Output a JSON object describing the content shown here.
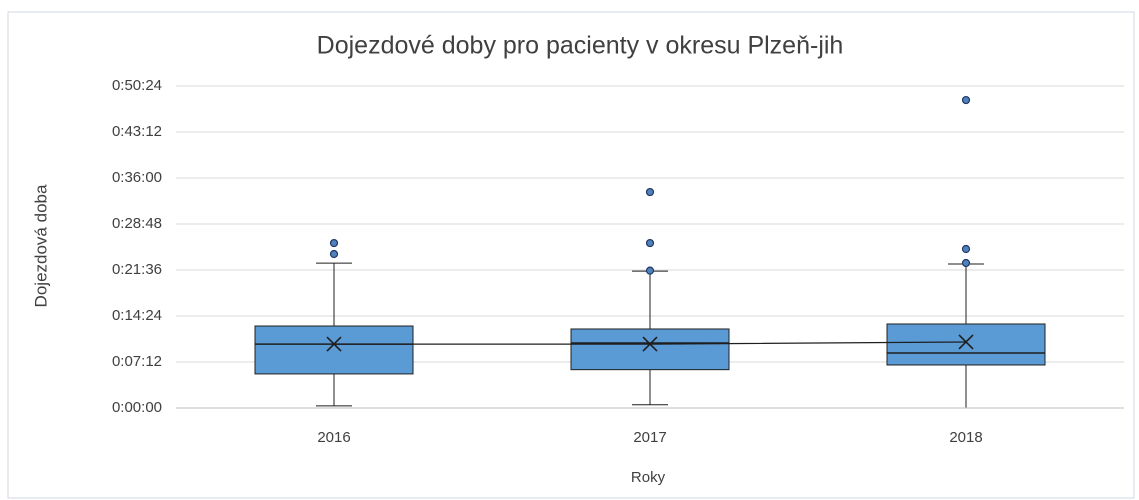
{
  "chart_data": {
    "type": "box",
    "title": "Dojezdové doby pro pacienty v okresu Plzeň-jih",
    "x_label": "Roky",
    "y_label": "Dojezdová doba",
    "categories": [
      "2016",
      "2017",
      "2018"
    ],
    "boxes": [
      {
        "min": 20,
        "q1": 320,
        "median": 600,
        "q3": 770,
        "max": 1360,
        "mean": 600,
        "outliers": [
          1446,
          1549
        ]
      },
      {
        "min": 30,
        "q1": 360,
        "median": 610,
        "q3": 742,
        "max": 1286,
        "mean": 600,
        "outliers": [
          1290,
          1549,
          2028
        ]
      },
      {
        "min": 0,
        "q1": 404,
        "median": 516,
        "q3": 789,
        "max": 1352,
        "mean": 620,
        "outliers": [
          1362,
          1493,
          2892
        ]
      }
    ],
    "color": "#5b9bd5",
    "ylim": [
      0,
      3024
    ],
    "yticks": [
      {
        "value": 0,
        "label": "0:00:00"
      },
      {
        "value": 432,
        "label": "0:07:12"
      },
      {
        "value": 864,
        "label": "0:14:24"
      },
      {
        "value": 1296,
        "label": "0:21:36"
      },
      {
        "value": 1728,
        "label": "0:28:48"
      },
      {
        "value": 2160,
        "label": "0:36:00"
      },
      {
        "value": 2592,
        "label": "0:43:12"
      },
      {
        "value": 3024,
        "label": "0:50:24"
      }
    ],
    "grid": true
  }
}
